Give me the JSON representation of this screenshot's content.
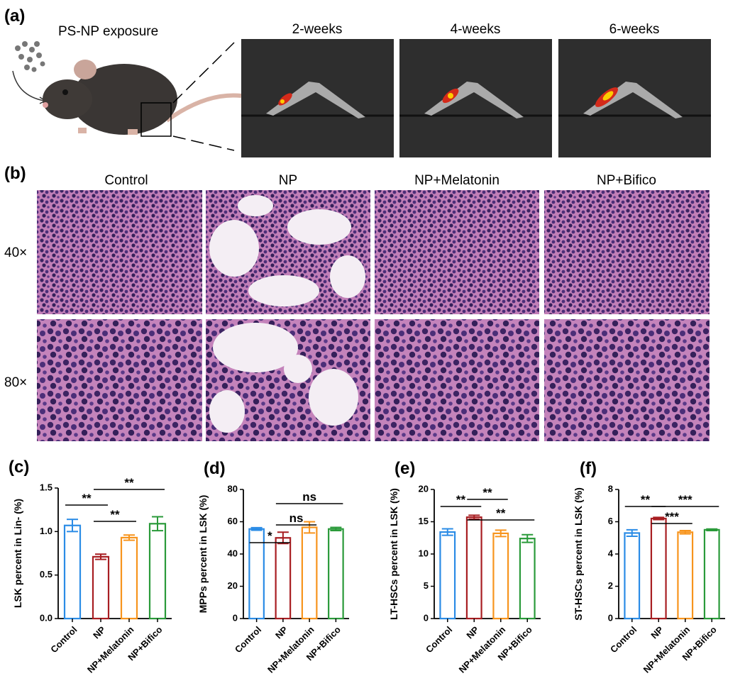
{
  "panel_a": {
    "label": "(a)",
    "caption": "PS-NP exposure",
    "times": [
      "2-weeks",
      "4-weeks",
      "6-weeks"
    ]
  },
  "panel_b": {
    "label": "(b)",
    "columns": [
      "Control",
      "NP",
      "NP+Melatonin",
      "NP+Bifico"
    ],
    "rows": [
      "40×",
      "80×"
    ]
  },
  "chart_data": [
    {
      "type": "bar",
      "label": "(c)",
      "ylabel": "LSK percent in Lin- (%)",
      "categories": [
        "Control",
        "NP",
        "NP+Melatonin",
        "NP+Bifico"
      ],
      "values": [
        1.07,
        0.71,
        0.93,
        1.09
      ],
      "errors": [
        0.07,
        0.03,
        0.03,
        0.08
      ],
      "colors": [
        "#2b8ce6",
        "#a81e22",
        "#f7941d",
        "#2a9a3a"
      ],
      "ylim": [
        0,
        1.5
      ],
      "yticks": [
        {
          "value": 0,
          "label": "0.0"
        },
        0.5,
        {
          "value": 1,
          "label": "1.0"
        },
        1.5
      ],
      "annotations": [
        "**",
        "**",
        "**"
      ]
    },
    {
      "type": "bar",
      "label": "(d)",
      "ylabel": "MPPs percent in LSK (%)",
      "categories": [
        "Control",
        "NP",
        "NP+Melatonin",
        "NP+Bifico"
      ],
      "values": [
        55.5,
        50,
        56.5,
        55.5
      ],
      "errors": [
        0.8,
        3.5,
        3.5,
        1
      ],
      "colors": [
        "#2b8ce6",
        "#a81e22",
        "#f7941d",
        "#2a9a3a"
      ],
      "ylim": [
        0,
        80
      ],
      "yticks": [
        0,
        20,
        40,
        60,
        80
      ],
      "annotations": [
        "*",
        "ns",
        "ns"
      ]
    },
    {
      "type": "bar",
      "label": "(e)",
      "ylabel": "LT-HSCs percent in LSK (%)",
      "categories": [
        "Control",
        "NP",
        "NP+Melatonin",
        "NP+Bifico"
      ],
      "values": [
        13.4,
        15.7,
        13.2,
        12.4
      ],
      "errors": [
        0.5,
        0.3,
        0.5,
        0.6
      ],
      "colors": [
        "#2b8ce6",
        "#a81e22",
        "#f7941d",
        "#2a9a3a"
      ],
      "ylim": [
        0,
        20
      ],
      "yticks": [
        0,
        5,
        10,
        15,
        20
      ],
      "annotations": [
        "**",
        "**",
        "**"
      ]
    },
    {
      "type": "bar",
      "label": "(f)",
      "ylabel": "ST-HSCs percent in LSK (%)",
      "categories": [
        "Control",
        "NP",
        "NP+Melatonin",
        "NP+Bifico"
      ],
      "values": [
        5.3,
        6.2,
        5.35,
        5.5
      ],
      "errors": [
        0.2,
        0.07,
        0.1,
        0.05
      ],
      "colors": [
        "#2b8ce6",
        "#a81e22",
        "#f7941d",
        "#2a9a3a"
      ],
      "ylim": [
        0,
        8
      ],
      "yticks": [
        0,
        2,
        4,
        6,
        8
      ],
      "annotations": [
        "**",
        "***",
        "***"
      ]
    }
  ]
}
